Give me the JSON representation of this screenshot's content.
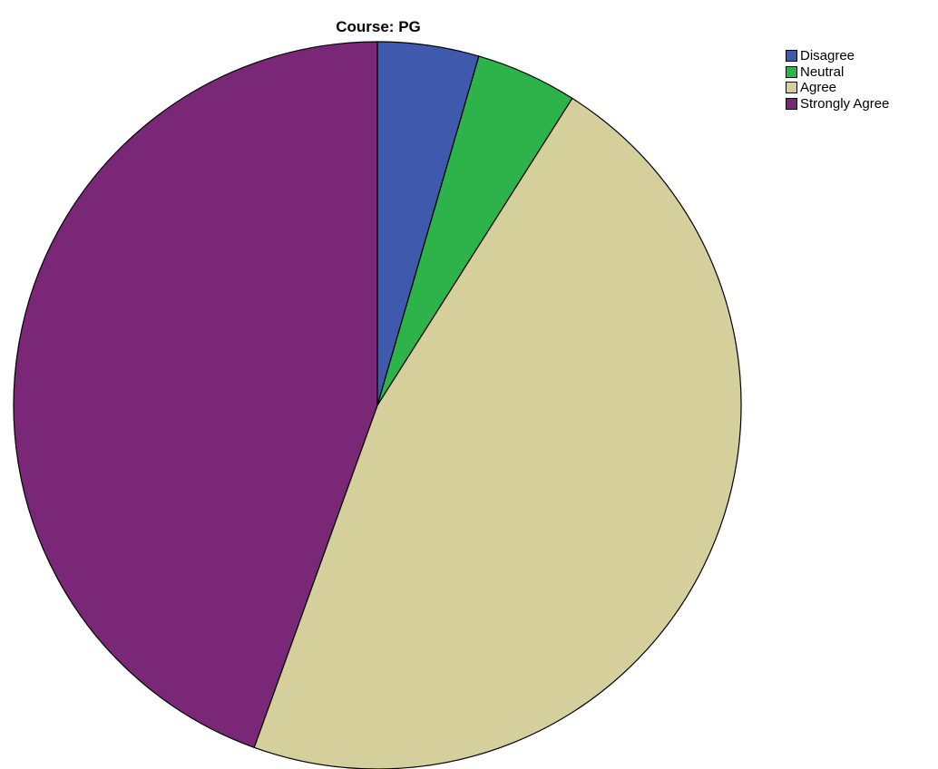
{
  "chart_data": {
    "type": "pie",
    "title": "Course: PG",
    "start_angle_deg": 0,
    "direction": "clockwise",
    "slices": [
      {
        "label": "Disagree",
        "value": 4.5,
        "color": "#3f59ad"
      },
      {
        "label": "Neutral",
        "value": 4.5,
        "color": "#2db34a"
      },
      {
        "label": "Agree",
        "value": 46.5,
        "color": "#d4cf9b"
      },
      {
        "label": "Strongly Agree",
        "value": 44.5,
        "color": "#7a2777"
      }
    ],
    "legend_position": "top-right"
  }
}
